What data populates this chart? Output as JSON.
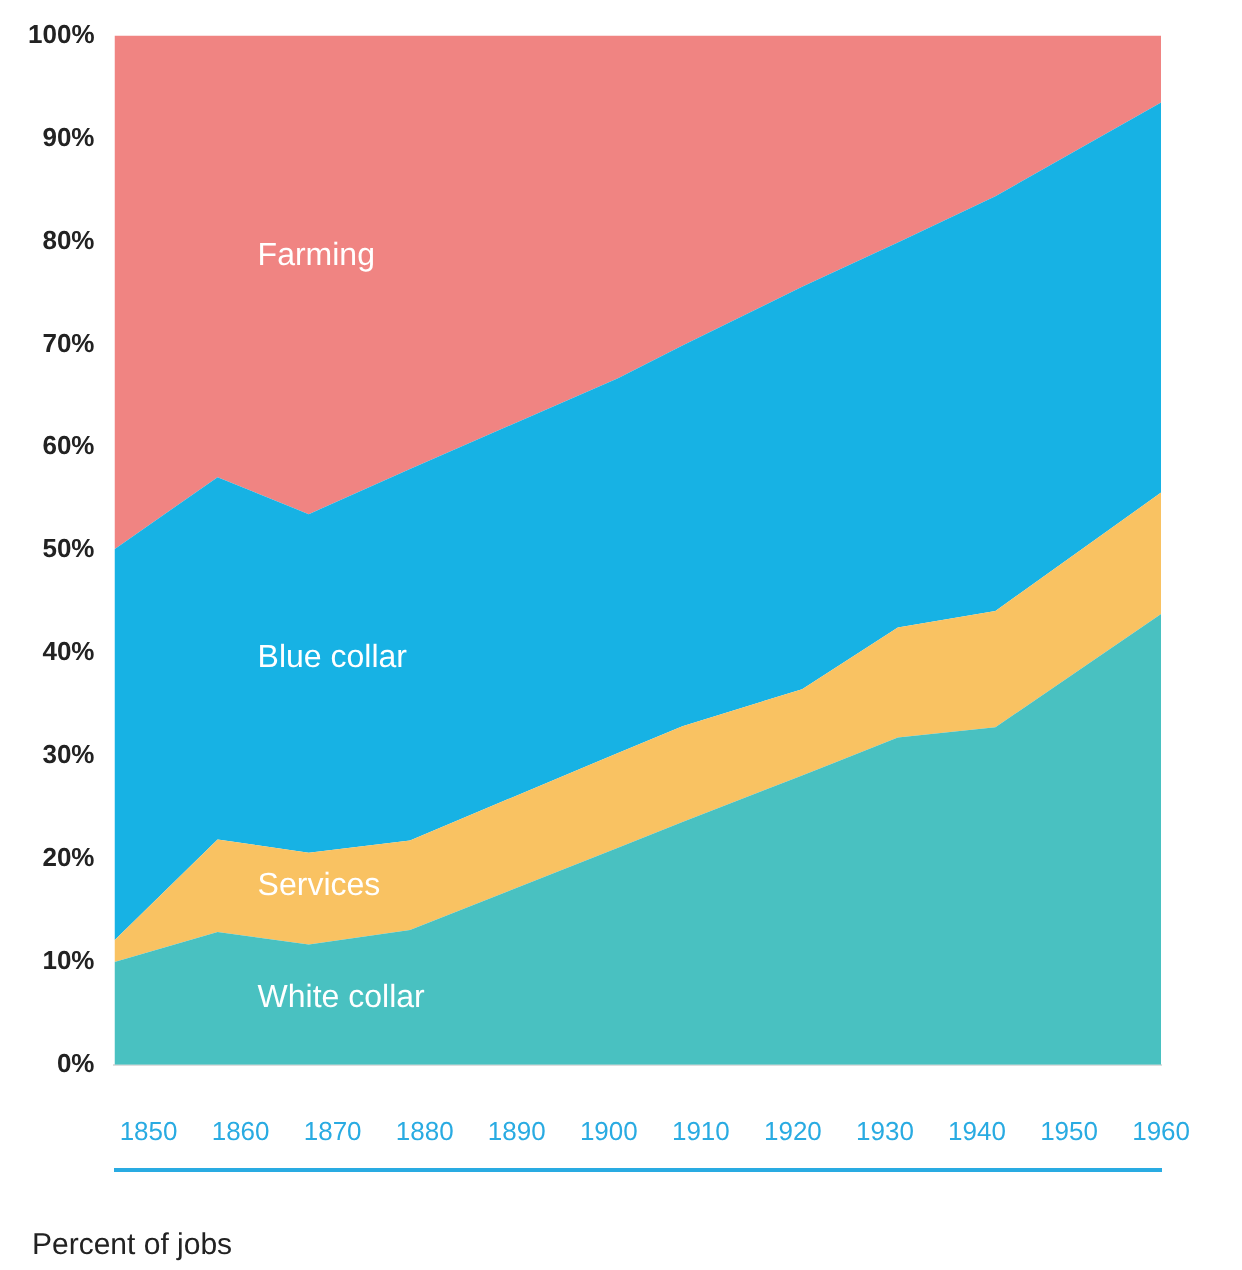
{
  "chart_data": {
    "type": "area",
    "stacked": true,
    "grid": false,
    "legend": false,
    "x": [
      1846.3,
      1857.5,
      1867.4,
      1878.4,
      1901,
      1908,
      1921,
      1931.4,
      1942,
      1960
    ],
    "xlim": [
      1846.3,
      1960
    ],
    "xticks": [
      1850,
      1860,
      1870,
      1880,
      1890,
      1900,
      1910,
      1920,
      1930,
      1940,
      1950,
      1960
    ],
    "ylim": [
      0,
      100
    ],
    "yticks": [
      {
        "value": 0,
        "label": "0%"
      },
      {
        "value": 10,
        "label": "10%"
      },
      {
        "value": 20,
        "label": "20%"
      },
      {
        "value": 30,
        "label": "30%"
      },
      {
        "value": 40,
        "label": "40%"
      },
      {
        "value": 50,
        "label": "50%"
      },
      {
        "value": 60,
        "label": "60%"
      },
      {
        "value": 70,
        "label": "70%"
      },
      {
        "value": 80,
        "label": "80%"
      },
      {
        "value": 90,
        "label": "90%"
      },
      {
        "value": 100,
        "label": "100%"
      }
    ],
    "series": [
      {
        "name": "White collar",
        "color": "#49c1c1",
        "values": [
          10.0,
          12.9,
          11.7,
          13.1,
          21.1,
          23.6,
          28.1,
          31.8,
          32.8,
          43.8
        ]
      },
      {
        "name": "Services",
        "color": "#f9c262",
        "values": [
          2.1,
          9.0,
          8.9,
          8.7,
          9.2,
          9.3,
          8.4,
          10.7,
          11.3,
          11.8
        ]
      },
      {
        "name": "Blue collar",
        "color": "#17b2e4",
        "values": [
          38.0,
          35.2,
          32.9,
          36.1,
          36.4,
          37.0,
          39.1,
          37.4,
          40.3,
          37.9
        ]
      },
      {
        "name": "Farming",
        "color": "#f08482",
        "values": [
          49.9,
          42.9,
          46.5,
          42.1,
          33.3,
          30.1,
          24.4,
          20.1,
          15.6,
          6.5
        ]
      }
    ],
    "annotations": [
      "Percent of jobs"
    ]
  }
}
